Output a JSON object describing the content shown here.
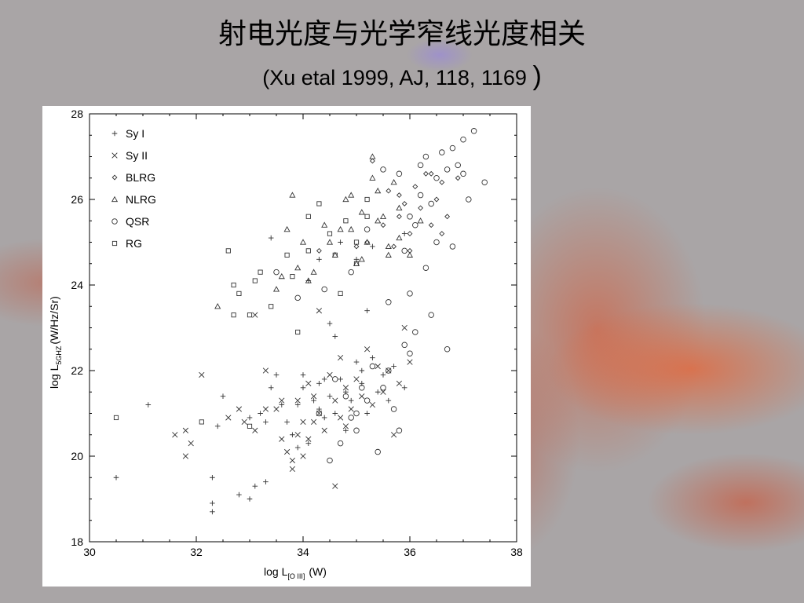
{
  "slide": {
    "title": "射电光度与光学窄线光度相关",
    "subtitle": "(Xu etal 1999, AJ, 118, 1169",
    "subtitle_close_paren": ")"
  },
  "chart_data": {
    "type": "scatter",
    "title": "",
    "xlabel": "log L",
    "xlabel_sub": "[O III]",
    "xlabel_unit": "(W)",
    "ylabel": "log L",
    "ylabel_sub": "5GHZ",
    "ylabel_unit": "(W/Hz/Sr)",
    "xlim": [
      30,
      38
    ],
    "ylim": [
      18,
      28
    ],
    "xticks": [
      "30",
      "32",
      "34",
      "36",
      "38"
    ],
    "yticks": [
      "18",
      "20",
      "22",
      "24",
      "26",
      "28"
    ],
    "legend_position": "top-left",
    "series": [
      {
        "name": "Sy I",
        "marker": "plus",
        "points": [
          [
            30.5,
            19.5
          ],
          [
            31.1,
            21.2
          ],
          [
            32.3,
            18.7
          ],
          [
            32.3,
            18.9
          ],
          [
            32.3,
            19.5
          ],
          [
            32.4,
            20.7
          ],
          [
            32.5,
            21.4
          ],
          [
            32.8,
            19.1
          ],
          [
            33.0,
            19.0
          ],
          [
            33.1,
            19.3
          ],
          [
            33.3,
            19.4
          ],
          [
            33.2,
            21.0
          ],
          [
            33.4,
            21.6
          ],
          [
            33.5,
            21.9
          ],
          [
            33.6,
            21.2
          ],
          [
            33.7,
            20.8
          ],
          [
            33.8,
            20.5
          ],
          [
            33.9,
            21.2
          ],
          [
            34.0,
            21.9
          ],
          [
            34.1,
            20.3
          ],
          [
            34.2,
            21.3
          ],
          [
            34.3,
            21.7
          ],
          [
            34.4,
            20.9
          ],
          [
            34.5,
            21.4
          ],
          [
            34.6,
            21.0
          ],
          [
            34.7,
            21.8
          ],
          [
            34.8,
            20.6
          ],
          [
            34.9,
            21.3
          ],
          [
            35.0,
            22.2
          ],
          [
            35.1,
            21.7
          ],
          [
            35.2,
            21.0
          ],
          [
            35.3,
            22.3
          ],
          [
            35.4,
            21.5
          ],
          [
            35.5,
            21.9
          ],
          [
            35.7,
            22.1
          ],
          [
            35.9,
            21.6
          ],
          [
            34.6,
            22.8
          ],
          [
            34.5,
            23.1
          ],
          [
            35.2,
            23.4
          ],
          [
            33.4,
            25.1
          ],
          [
            35.0,
            24.6
          ],
          [
            34.1,
            24.1
          ],
          [
            35.3,
            24.9
          ],
          [
            35.9,
            25.2
          ],
          [
            34.3,
            24.6
          ],
          [
            34.7,
            25.0
          ],
          [
            33.0,
            20.9
          ],
          [
            33.9,
            20.2
          ],
          [
            34.3,
            21.1
          ],
          [
            35.6,
            21.3
          ],
          [
            34.0,
            21.6
          ],
          [
            35.1,
            22.0
          ],
          [
            34.4,
            21.8
          ],
          [
            33.3,
            20.8
          ],
          [
            34.8,
            21.5
          ]
        ]
      },
      {
        "name": "Sy II",
        "marker": "cross",
        "points": [
          [
            31.6,
            20.5
          ],
          [
            31.8,
            20.0
          ],
          [
            31.8,
            20.6
          ],
          [
            31.9,
            20.3
          ],
          [
            32.1,
            21.9
          ],
          [
            32.6,
            20.9
          ],
          [
            32.8,
            21.1
          ],
          [
            32.9,
            20.8
          ],
          [
            33.1,
            20.6
          ],
          [
            33.3,
            21.1
          ],
          [
            33.6,
            21.3
          ],
          [
            33.7,
            20.1
          ],
          [
            33.8,
            19.9
          ],
          [
            33.8,
            19.7
          ],
          [
            33.9,
            20.5
          ],
          [
            34.0,
            20.0
          ],
          [
            34.1,
            21.7
          ],
          [
            34.2,
            21.4
          ],
          [
            34.3,
            21.0
          ],
          [
            34.4,
            20.6
          ],
          [
            34.5,
            21.9
          ],
          [
            34.6,
            21.3
          ],
          [
            34.7,
            20.9
          ],
          [
            34.8,
            21.6
          ],
          [
            34.9,
            21.1
          ],
          [
            35.0,
            21.8
          ],
          [
            35.2,
            22.5
          ],
          [
            35.4,
            22.1
          ],
          [
            35.5,
            21.5
          ],
          [
            35.6,
            22.0
          ],
          [
            35.8,
            21.7
          ],
          [
            35.9,
            23.0
          ],
          [
            36.0,
            22.2
          ],
          [
            34.6,
            19.3
          ],
          [
            33.3,
            22.0
          ],
          [
            33.1,
            23.3
          ],
          [
            34.3,
            23.4
          ],
          [
            33.6,
            20.4
          ],
          [
            34.8,
            20.7
          ],
          [
            35.3,
            21.2
          ],
          [
            33.9,
            21.3
          ],
          [
            34.2,
            20.8
          ],
          [
            35.1,
            21.4
          ],
          [
            34.0,
            20.8
          ],
          [
            33.5,
            21.1
          ],
          [
            34.7,
            22.3
          ],
          [
            35.7,
            20.5
          ],
          [
            34.1,
            20.4
          ]
        ]
      },
      {
        "name": "BLRG",
        "marker": "diamond",
        "points": [
          [
            35.3,
            26.9
          ],
          [
            35.6,
            26.2
          ],
          [
            35.8,
            25.6
          ],
          [
            35.9,
            25.9
          ],
          [
            36.0,
            25.2
          ],
          [
            36.1,
            26.3
          ],
          [
            36.2,
            25.8
          ],
          [
            36.3,
            26.6
          ],
          [
            36.4,
            25.4
          ],
          [
            36.5,
            26.0
          ],
          [
            36.6,
            26.4
          ],
          [
            36.7,
            25.6
          ],
          [
            36.9,
            26.5
          ],
          [
            35.5,
            25.4
          ],
          [
            35.7,
            24.9
          ],
          [
            35.2,
            25.0
          ],
          [
            35.0,
            24.9
          ],
          [
            36.0,
            24.8
          ],
          [
            36.4,
            26.6
          ],
          [
            35.8,
            26.1
          ],
          [
            36.6,
            25.2
          ],
          [
            34.3,
            24.8
          ]
        ]
      },
      {
        "name": "NLRG",
        "marker": "triangle",
        "points": [
          [
            32.4,
            23.5
          ],
          [
            33.5,
            23.9
          ],
          [
            33.7,
            25.3
          ],
          [
            33.8,
            26.1
          ],
          [
            34.0,
            25.0
          ],
          [
            34.2,
            24.3
          ],
          [
            34.4,
            25.4
          ],
          [
            34.6,
            24.7
          ],
          [
            34.8,
            26.0
          ],
          [
            34.9,
            25.3
          ],
          [
            35.0,
            24.5
          ],
          [
            35.1,
            25.7
          ],
          [
            35.2,
            25.0
          ],
          [
            35.3,
            26.5
          ],
          [
            35.4,
            26.2
          ],
          [
            35.5,
            25.6
          ],
          [
            35.6,
            24.9
          ],
          [
            35.7,
            26.4
          ],
          [
            35.8,
            25.1
          ],
          [
            36.0,
            24.7
          ],
          [
            36.2,
            25.5
          ],
          [
            35.3,
            27.0
          ],
          [
            34.5,
            25.0
          ],
          [
            34.1,
            24.1
          ],
          [
            33.9,
            24.4
          ],
          [
            35.4,
            25.5
          ],
          [
            34.7,
            25.3
          ],
          [
            35.6,
            24.7
          ],
          [
            34.9,
            26.1
          ],
          [
            35.8,
            25.8
          ],
          [
            33.6,
            24.2
          ],
          [
            35.1,
            24.6
          ]
        ]
      },
      {
        "name": "QSR",
        "marker": "circle",
        "points": [
          [
            34.5,
            19.9
          ],
          [
            34.7,
            20.3
          ],
          [
            34.9,
            20.9
          ],
          [
            35.0,
            21.0
          ],
          [
            35.2,
            21.3
          ],
          [
            35.4,
            20.1
          ],
          [
            35.5,
            21.6
          ],
          [
            35.6,
            22.0
          ],
          [
            35.7,
            21.1
          ],
          [
            35.8,
            20.6
          ],
          [
            35.9,
            22.6
          ],
          [
            36.0,
            22.4
          ],
          [
            36.1,
            22.9
          ],
          [
            36.4,
            23.3
          ],
          [
            36.7,
            22.5
          ],
          [
            34.8,
            21.4
          ],
          [
            35.1,
            21.6
          ],
          [
            35.3,
            22.1
          ],
          [
            34.6,
            21.8
          ],
          [
            35.0,
            20.6
          ],
          [
            34.3,
            21.0
          ],
          [
            33.9,
            23.7
          ],
          [
            33.5,
            24.3
          ],
          [
            34.4,
            23.9
          ],
          [
            35.6,
            23.6
          ],
          [
            35.9,
            24.8
          ],
          [
            36.0,
            23.8
          ],
          [
            36.1,
            25.4
          ],
          [
            36.2,
            26.1
          ],
          [
            36.3,
            24.4
          ],
          [
            36.4,
            25.9
          ],
          [
            36.5,
            26.5
          ],
          [
            36.6,
            27.1
          ],
          [
            36.7,
            26.7
          ],
          [
            36.8,
            27.2
          ],
          [
            36.9,
            26.8
          ],
          [
            37.0,
            27.4
          ],
          [
            37.1,
            26.0
          ],
          [
            37.2,
            27.6
          ],
          [
            37.4,
            26.4
          ],
          [
            35.8,
            26.6
          ],
          [
            36.3,
            27.0
          ],
          [
            35.5,
            26.7
          ],
          [
            36.0,
            25.6
          ],
          [
            36.8,
            24.9
          ],
          [
            34.9,
            24.3
          ],
          [
            35.2,
            25.3
          ],
          [
            36.5,
            25.0
          ],
          [
            37.0,
            26.6
          ],
          [
            36.2,
            26.8
          ]
        ]
      },
      {
        "name": "RG",
        "marker": "square",
        "points": [
          [
            30.5,
            20.9
          ],
          [
            32.1,
            20.8
          ],
          [
            32.6,
            24.8
          ],
          [
            32.7,
            24.0
          ],
          [
            32.7,
            23.3
          ],
          [
            32.8,
            23.8
          ],
          [
            33.0,
            23.3
          ],
          [
            33.1,
            24.1
          ],
          [
            33.2,
            24.3
          ],
          [
            33.4,
            23.5
          ],
          [
            33.7,
            24.7
          ],
          [
            33.8,
            24.2
          ],
          [
            33.9,
            22.9
          ],
          [
            34.1,
            24.8
          ],
          [
            34.3,
            25.9
          ],
          [
            34.5,
            25.2
          ],
          [
            34.6,
            24.7
          ],
          [
            34.7,
            23.8
          ],
          [
            34.8,
            25.5
          ],
          [
            35.0,
            25.0
          ],
          [
            35.0,
            24.5
          ],
          [
            35.2,
            26.0
          ],
          [
            34.1,
            25.6
          ],
          [
            35.2,
            25.6
          ],
          [
            33.0,
            20.7
          ]
        ]
      }
    ]
  }
}
